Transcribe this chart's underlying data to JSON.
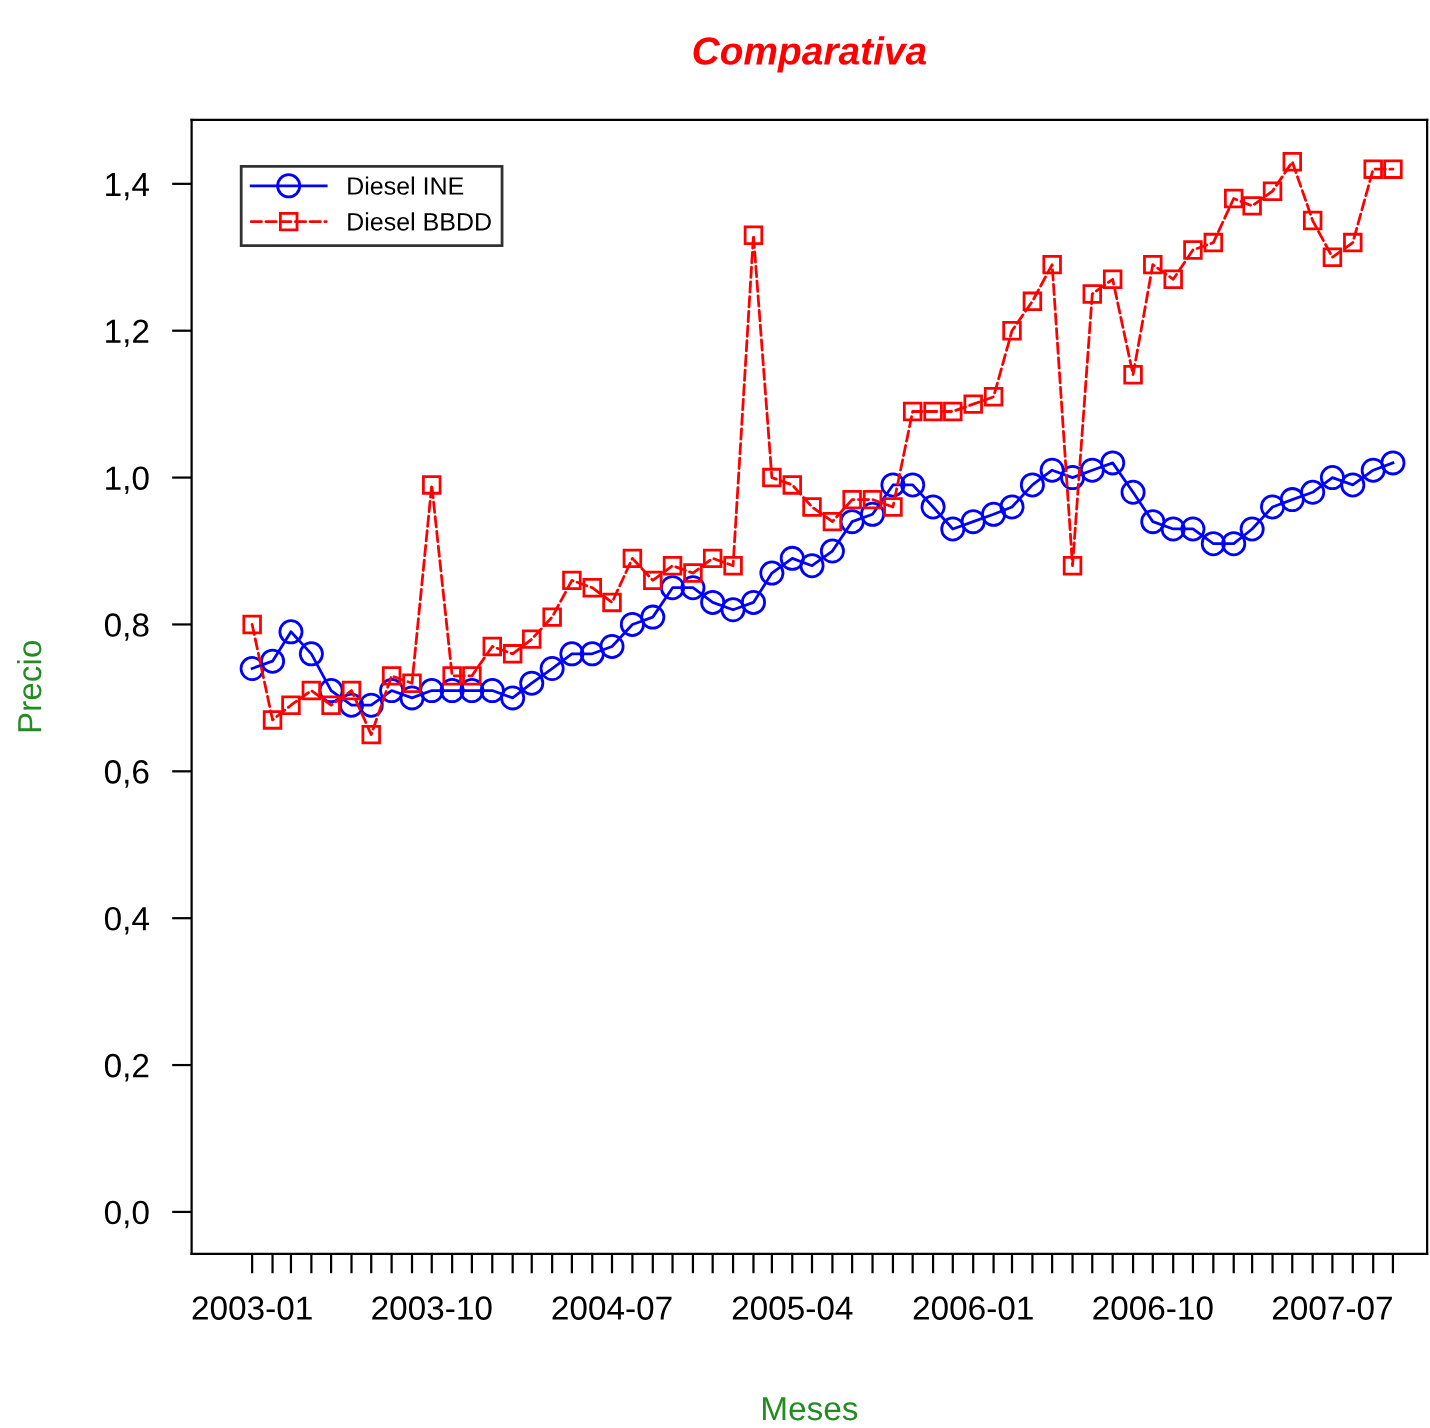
{
  "chart_data": {
    "type": "line",
    "title": "Comparativa",
    "xlabel": "Meses",
    "ylabel": "Precio",
    "x": [
      "2003-01",
      "2003-02",
      "2003-03",
      "2003-04",
      "2003-05",
      "2003-06",
      "2003-07",
      "2003-08",
      "2003-09",
      "2003-10",
      "2003-11",
      "2003-12",
      "2004-01",
      "2004-02",
      "2004-03",
      "2004-04",
      "2004-05",
      "2004-06",
      "2004-07",
      "2004-08",
      "2004-09",
      "2004-10",
      "2004-11",
      "2004-12",
      "2005-01",
      "2005-02",
      "2005-03",
      "2005-04",
      "2005-05",
      "2005-06",
      "2005-07",
      "2005-08",
      "2005-09",
      "2005-10",
      "2005-11",
      "2005-12",
      "2006-01",
      "2006-02",
      "2006-03",
      "2006-04",
      "2006-05",
      "2006-06",
      "2006-07",
      "2006-08",
      "2006-09",
      "2006-10",
      "2006-11",
      "2006-12",
      "2007-01",
      "2007-02",
      "2007-03",
      "2007-04",
      "2007-05",
      "2007-06",
      "2007-07",
      "2007-08",
      "2007-09",
      "2007-10"
    ],
    "series": [
      {
        "name": "Diesel INE",
        "color": "#0000ff",
        "marker": "circle",
        "line_style": "solid",
        "values": [
          0.74,
          0.75,
          0.79,
          0.76,
          0.71,
          0.69,
          0.69,
          0.71,
          0.7,
          0.71,
          0.71,
          0.71,
          0.71,
          0.7,
          0.72,
          0.74,
          0.76,
          0.76,
          0.77,
          0.8,
          0.81,
          0.85,
          0.85,
          0.83,
          0.82,
          0.83,
          0.87,
          0.89,
          0.88,
          0.9,
          0.94,
          0.95,
          0.99,
          0.99,
          0.96,
          0.93,
          0.94,
          0.95,
          0.96,
          0.99,
          1.01,
          1.0,
          1.01,
          1.02,
          0.98,
          0.94,
          0.93,
          0.93,
          0.91,
          0.91,
          0.93,
          0.96,
          0.97,
          0.98,
          1.0,
          0.99,
          1.01,
          1.02
        ]
      },
      {
        "name": "Diesel BBDD",
        "color": "#ff0000",
        "marker": "square",
        "line_style": "dashed",
        "values": [
          0.8,
          0.67,
          0.69,
          0.71,
          0.69,
          0.71,
          0.65,
          0.73,
          0.72,
          0.99,
          0.73,
          0.73,
          0.77,
          0.76,
          0.78,
          0.81,
          0.86,
          0.85,
          0.83,
          0.89,
          0.86,
          0.88,
          0.87,
          0.89,
          0.88,
          1.33,
          1.0,
          0.99,
          0.96,
          0.94,
          0.97,
          0.97,
          0.96,
          1.09,
          1.09,
          1.09,
          1.1,
          1.11,
          1.2,
          1.24,
          1.29,
          0.88,
          1.25,
          1.27,
          1.14,
          1.29,
          1.27,
          1.31,
          1.32,
          1.38,
          1.37,
          1.39,
          1.43,
          1.35,
          1.3,
          1.32,
          1.42,
          1.42
        ]
      }
    ],
    "xlim": [
      "2002-10-01",
      "2007-11-22"
    ],
    "xticks": [
      {
        "value": "2003-01",
        "label": "2003-01"
      },
      {
        "value": "2003-02",
        "label": null
      },
      {
        "value": "2003-03",
        "label": null
      },
      {
        "value": "2003-04",
        "label": null
      },
      {
        "value": "2003-05",
        "label": null
      },
      {
        "value": "2003-06",
        "label": null
      },
      {
        "value": "2003-07",
        "label": null
      },
      {
        "value": "2003-08",
        "label": null
      },
      {
        "value": "2003-09",
        "label": null
      },
      {
        "value": "2003-10",
        "label": "2003-10"
      },
      {
        "value": "2003-11",
        "label": null
      },
      {
        "value": "2003-12",
        "label": null
      },
      {
        "value": "2004-01",
        "label": null
      },
      {
        "value": "2004-02",
        "label": null
      },
      {
        "value": "2004-03",
        "label": null
      },
      {
        "value": "2004-04",
        "label": null
      },
      {
        "value": "2004-05",
        "label": null
      },
      {
        "value": "2004-06",
        "label": null
      },
      {
        "value": "2004-07",
        "label": "2004-07"
      },
      {
        "value": "2004-08",
        "label": null
      },
      {
        "value": "2004-09",
        "label": null
      },
      {
        "value": "2004-10",
        "label": null
      },
      {
        "value": "2004-11",
        "label": null
      },
      {
        "value": "2004-12",
        "label": null
      },
      {
        "value": "2005-01",
        "label": null
      },
      {
        "value": "2005-02",
        "label": null
      },
      {
        "value": "2005-03",
        "label": null
      },
      {
        "value": "2005-04",
        "label": "2005-04"
      },
      {
        "value": "2005-05",
        "label": null
      },
      {
        "value": "2005-06",
        "label": null
      },
      {
        "value": "2005-07",
        "label": null
      },
      {
        "value": "2005-08",
        "label": null
      },
      {
        "value": "2005-09",
        "label": null
      },
      {
        "value": "2005-10",
        "label": null
      },
      {
        "value": "2005-11",
        "label": null
      },
      {
        "value": "2005-12",
        "label": null
      },
      {
        "value": "2006-01",
        "label": "2006-01"
      },
      {
        "value": "2006-02",
        "label": null
      },
      {
        "value": "2006-03",
        "label": null
      },
      {
        "value": "2006-04",
        "label": null
      },
      {
        "value": "2006-05",
        "label": null
      },
      {
        "value": "2006-06",
        "label": null
      },
      {
        "value": "2006-07",
        "label": null
      },
      {
        "value": "2006-08",
        "label": null
      },
      {
        "value": "2006-09",
        "label": null
      },
      {
        "value": "2006-10",
        "label": "2006-10"
      },
      {
        "value": "2006-11",
        "label": null
      },
      {
        "value": "2006-12",
        "label": null
      },
      {
        "value": "2007-01",
        "label": null
      },
      {
        "value": "2007-02",
        "label": null
      },
      {
        "value": "2007-03",
        "label": null
      },
      {
        "value": "2007-04",
        "label": null
      },
      {
        "value": "2007-05",
        "label": null
      },
      {
        "value": "2007-06",
        "label": null
      },
      {
        "value": "2007-07",
        "label": "2007-07"
      },
      {
        "value": "2007-08",
        "label": null
      },
      {
        "value": "2007-09",
        "label": null
      },
      {
        "value": "2007-10",
        "label": null
      }
    ],
    "ylim": [
      -0.057,
      1.487
    ],
    "yticks": [
      {
        "value": 0,
        "label": "0,0"
      },
      {
        "value": 0.2,
        "label": "0,2"
      },
      {
        "value": 0.4,
        "label": "0,4"
      },
      {
        "value": 0.6,
        "label": "0,6"
      },
      {
        "value": 0.8,
        "label": "0,8"
      },
      {
        "value": 1.0,
        "label": "1,0"
      },
      {
        "value": 1.2,
        "label": "1,2"
      },
      {
        "value": 1.4,
        "label": "1,4"
      }
    ],
    "grid": false,
    "legend": "top left"
  }
}
